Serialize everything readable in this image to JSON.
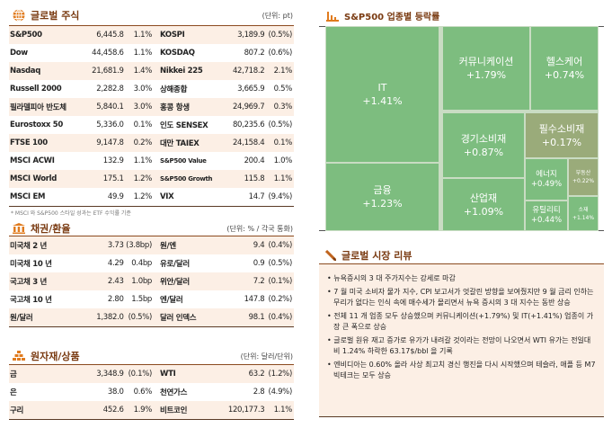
{
  "stocks": {
    "title": "글로벌 주식",
    "unit": "(단위: pt)",
    "rows": [
      [
        "S&P500",
        "6,445.8",
        "1.1%",
        "KOSPI",
        "3,189.9",
        "(0.5%)"
      ],
      [
        "Dow",
        "44,458.6",
        "1.1%",
        "KOSDAQ",
        "807.2",
        "(0.6%)"
      ],
      [
        "Nasdaq",
        "21,681.9",
        "1.4%",
        "Nikkei 225",
        "42,718.2",
        "2.1%"
      ],
      [
        "Russell 2000",
        "2,282.8",
        "3.0%",
        "상해종합",
        "3,665.9",
        "0.5%"
      ],
      [
        "필라델피아 반도체",
        "5,840.1",
        "3.0%",
        "홍콩 항생",
        "24,969.7",
        "0.3%"
      ],
      [
        "Eurostoxx 50",
        "5,336.0",
        "0.1%",
        "인도 SENSEX",
        "80,235.6",
        "(0.5%)"
      ],
      [
        "FTSE 100",
        "9,147.8",
        "0.2%",
        "대만 TAIEX",
        "24,158.4",
        "0.1%"
      ],
      [
        "MSCI ACWI",
        "132.9",
        "1.1%",
        "S&P500 Value",
        "200.4",
        "1.0%"
      ],
      [
        "MSCI World",
        "175.1",
        "1.2%",
        "S&P500 Growth",
        "115.8",
        "1.1%"
      ],
      [
        "MSCI EM",
        "49.9",
        "1.2%",
        "VIX",
        "14.7",
        "(9.4%)"
      ]
    ],
    "note": "* MSCI 와 S&P500 스타일 성과는 ETF 수익률 기준"
  },
  "bonds": {
    "title": "채권/환율",
    "unit": "(단위: % / 각국 통화)",
    "rows": [
      [
        "미국채 2 년",
        "3.73",
        "(3.8bp)",
        "원/엔",
        "9.4",
        "(0.4%)"
      ],
      [
        "미국채 10 년",
        "4.29",
        "0.4bp",
        "유로/달러",
        "0.9",
        "(0.5%)"
      ],
      [
        "국고채 3 년",
        "2.43",
        "1.0bp",
        "위안/달러",
        "7.2",
        "(0.1%)"
      ],
      [
        "국고채 10 년",
        "2.80",
        "1.5bp",
        "엔/달러",
        "147.8",
        "(0.2%)"
      ],
      [
        "원/달러",
        "1,382.0",
        "(0.5%)",
        "달러 인덱스",
        "98.1",
        "(0.4%)"
      ]
    ]
  },
  "commodities": {
    "title": "원자재/상품",
    "unit": "(단위: 달러/단위)",
    "rows": [
      [
        "금",
        "3,348.9",
        "(0.1%)",
        "WTI",
        "63.2",
        "(1.2%)"
      ],
      [
        "은",
        "38.0",
        "0.6%",
        "천연가스",
        "2.8",
        "(4.9%)"
      ],
      [
        "구리",
        "452.6",
        "1.9%",
        "비트코인",
        "120,177.3",
        "1.1%"
      ]
    ]
  },
  "treemap": {
    "title": "S&P500 업종별 등락률",
    "colors": {
      "up": "#7dbd7f",
      "weak": "#9aab7a"
    },
    "sectors": [
      {
        "name": "IT",
        "change": "+1.41%"
      },
      {
        "name": "금융",
        "change": "+1.23%"
      },
      {
        "name": "커뮤니케이션",
        "change": "+1.79%"
      },
      {
        "name": "헬스케어",
        "change": "+0.74%"
      },
      {
        "name": "경기소비재",
        "change": "+0.87%"
      },
      {
        "name": "필수소비재",
        "change": "+0.17%"
      },
      {
        "name": "산업재",
        "change": "+1.09%"
      },
      {
        "name": "에너지",
        "change": "+0.49%"
      },
      {
        "name": "부동산",
        "change": "+0.22%"
      },
      {
        "name": "유틸리티",
        "change": "+0.44%"
      },
      {
        "name": "소재",
        "change": "+1.14%"
      }
    ]
  },
  "review": {
    "title": "글로벌 시장 리뷰",
    "bullets": [
      "뉴욕증시의 3 대 주가지수는 강세로 마감",
      "7 월 미국 소비자 물가 지수, CPI 보고서가 엇갈린 방향을 보여줬지만 9 월 금리 인하는 무리가 없다는 인식 속에 매수세가 몰리면서 뉴욕 증시의 3 대 지수는 동반 상승",
      "전체 11 개 업종 모두 상승했으며 커뮤니케이션(+1.79%) 및 IT(+1.41%) 업종이 가장 큰 폭으로 상승",
      "글로벌 원유 재고 증가로 유가가 내려갈 것이라는 전망이 나오면서 WTI 유가는 전일대비 1.24% 하락한 63.17$/bbl 을 기록",
      "엔비디아는 0.60% 올라 사상 최고치 경신 행진을 다시 시작했으며 테슬라, 애플 등 M7 빅테크는 모두 상승"
    ]
  }
}
